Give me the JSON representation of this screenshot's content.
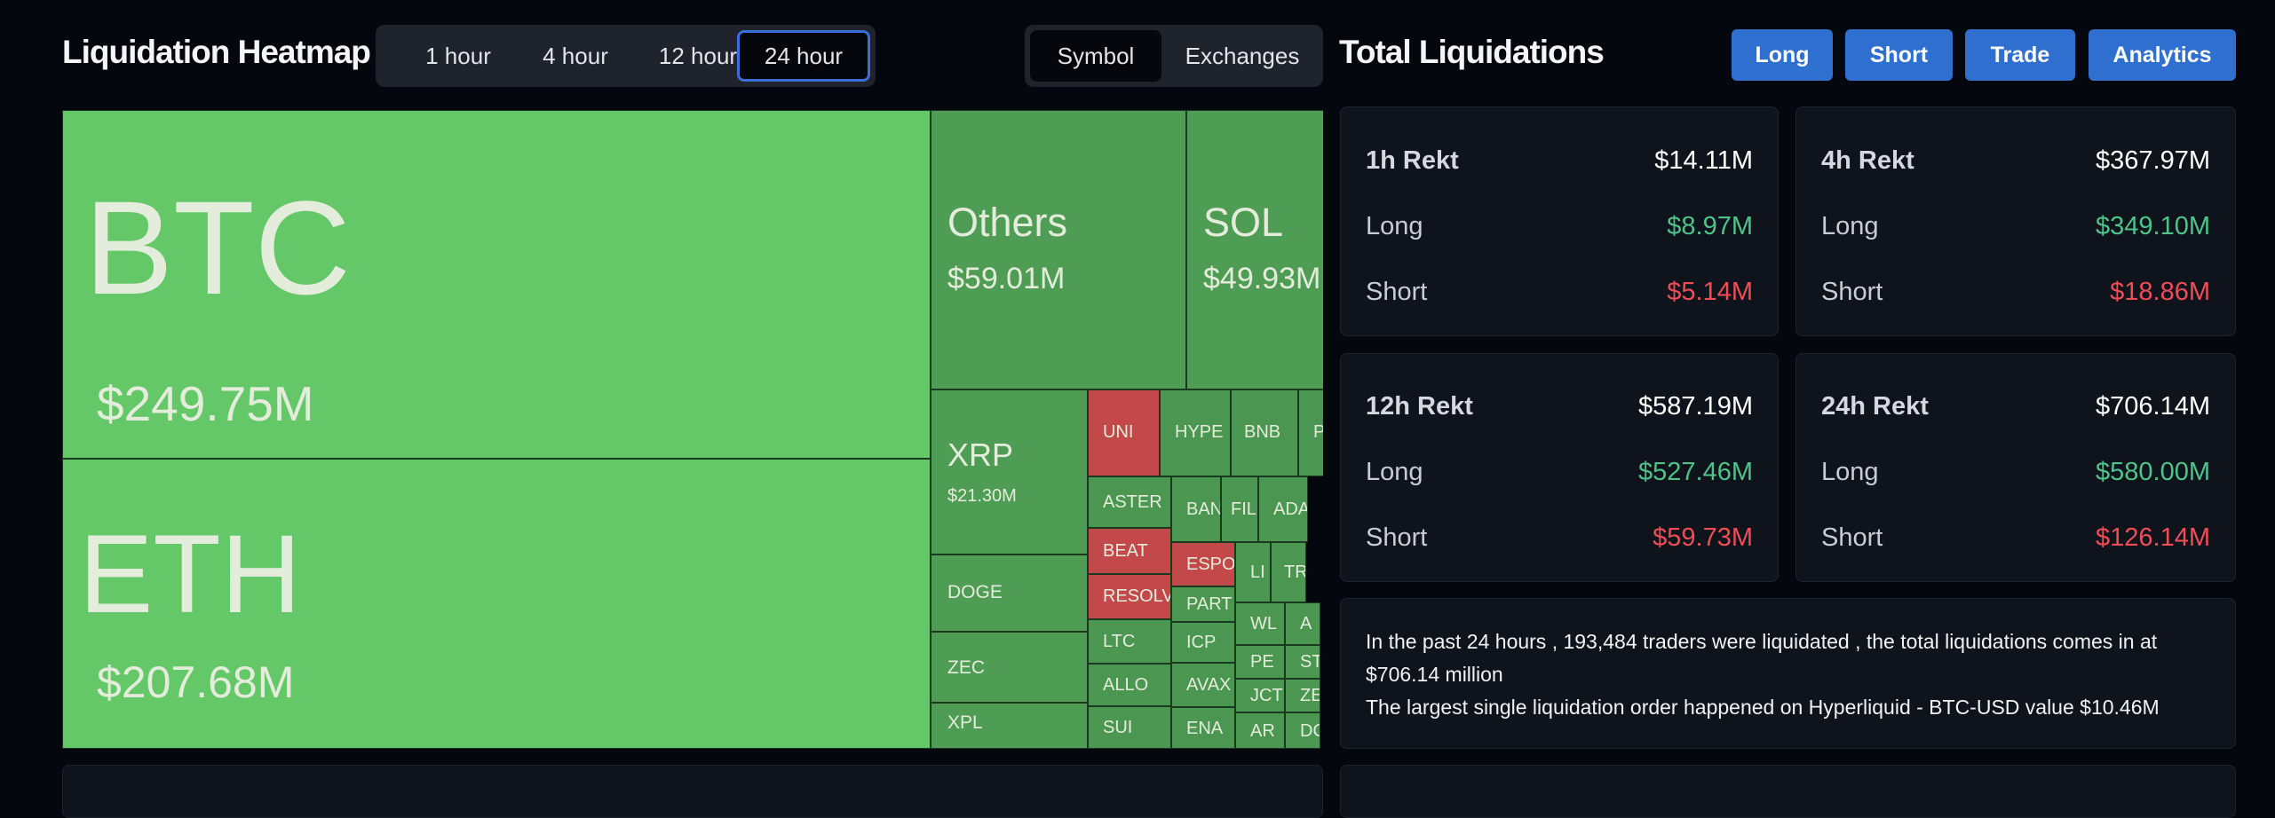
{
  "heatmap": {
    "title": "Liquidation Heatmap",
    "time_options": [
      "1 hour",
      "4 hour",
      "12 hour",
      "24 hour"
    ],
    "selected_time": "24 hour",
    "view_options": [
      "Symbol",
      "Exchanges"
    ],
    "selected_view": "Symbol",
    "tiles": {
      "btc": {
        "symbol": "BTC",
        "value": "$249.75M"
      },
      "eth": {
        "symbol": "ETH",
        "value": "$207.68M"
      },
      "others": {
        "symbol": "Others",
        "value": "$59.01M"
      },
      "sol": {
        "symbol": "SOL",
        "value": "$49.93M"
      },
      "xrp": {
        "symbol": "XRP",
        "value": "$21.30M"
      },
      "doge": {
        "symbol": "DOGE"
      },
      "zec": {
        "symbol": "ZEC"
      },
      "xpl": {
        "symbol": "XPL"
      },
      "uni": {
        "symbol": "UNI"
      },
      "hype": {
        "symbol": "HYPE"
      },
      "bnb": {
        "symbol": "BNB"
      },
      "p": {
        "symbol": "P"
      },
      "aster": {
        "symbol": "ASTER"
      },
      "beat": {
        "symbol": "BEAT"
      },
      "resolv": {
        "symbol": "RESOLV"
      },
      "ltc": {
        "symbol": "LTC"
      },
      "allo": {
        "symbol": "ALLO"
      },
      "sui": {
        "symbol": "SUI"
      },
      "ban": {
        "symbol": "BAN"
      },
      "fil": {
        "symbol": "FIL"
      },
      "ada": {
        "symbol": "ADA"
      },
      "espo": {
        "symbol": "ESPO"
      },
      "part": {
        "symbol": "PART"
      },
      "icp": {
        "symbol": "ICP"
      },
      "avax": {
        "symbol": "AVAX"
      },
      "ena": {
        "symbol": "ENA"
      },
      "li": {
        "symbol": "LI"
      },
      "tr": {
        "symbol": "TR"
      },
      "wl": {
        "symbol": "WL"
      },
      "a": {
        "symbol": "A"
      },
      "pe": {
        "symbol": "PE"
      },
      "st": {
        "symbol": "ST"
      },
      "jct": {
        "symbol": "JCT"
      },
      "ze": {
        "symbol": "ZE"
      },
      "ar": {
        "symbol": "AR"
      },
      "do": {
        "symbol": "DO"
      }
    }
  },
  "totals": {
    "title": "Total Liquidations",
    "buttons": [
      "Long",
      "Short",
      "Trade",
      "Analytics"
    ],
    "cards": [
      {
        "label": "1h Rekt",
        "total": "$14.11M",
        "long_label": "Long",
        "long": "$8.97M",
        "short_label": "Short",
        "short": "$5.14M"
      },
      {
        "label": "4h Rekt",
        "total": "$367.97M",
        "long_label": "Long",
        "long": "$349.10M",
        "short_label": "Short",
        "short": "$18.86M"
      },
      {
        "label": "12h Rekt",
        "total": "$587.19M",
        "long_label": "Long",
        "long": "$527.46M",
        "short_label": "Short",
        "short": "$59.73M"
      },
      {
        "label": "24h Rekt",
        "total": "$706.14M",
        "long_label": "Long",
        "long": "$580.00M",
        "short_label": "Short",
        "short": "$126.14M"
      }
    ],
    "summary_line1": "In the past 24 hours , 193,484 traders were liquidated , the total liquidations comes in at $706.14 million",
    "summary_line2": "The largest single liquidation order happened on Hyperliquid - BTC-USD value $10.46M"
  },
  "colors": {
    "accent": "#2f6fd0",
    "long_green": "#4ec38a",
    "short_red": "#ef4d57",
    "tile_green_bright": "#65c868",
    "tile_green": "#4f9c55",
    "tile_red": "#c2484a"
  }
}
